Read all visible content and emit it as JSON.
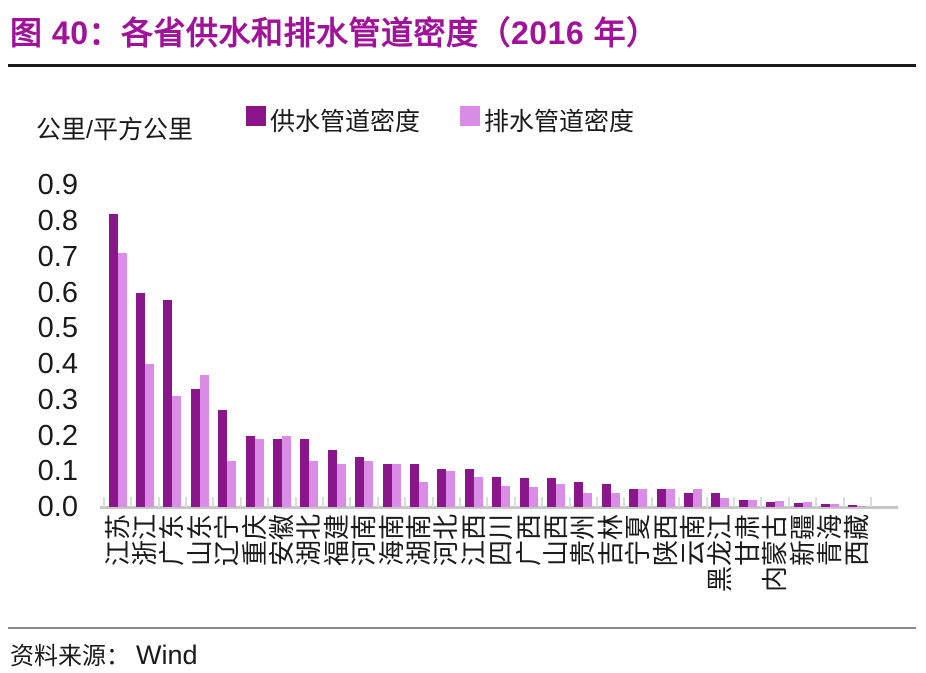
{
  "title": "图 40：各省供水和排水管道密度（2016 年）",
  "unit_label": "公里/平方公里",
  "source": {
    "label": "资料来源：",
    "value": "Wind"
  },
  "colors": {
    "title_purple": "#a0129a",
    "supply_bar": "#8b158b",
    "drain_bar": "#da8de6",
    "axis_line": "#c6c6c6",
    "tick": "#dcdcdc",
    "text": "#1a1a1a"
  },
  "y_axis": {
    "min": 0.0,
    "max": 0.9,
    "step": 0.1,
    "tick_labels": [
      "0.0",
      "0.1",
      "0.2",
      "0.3",
      "0.4",
      "0.5",
      "0.6",
      "0.7",
      "0.8",
      "0.9"
    ]
  },
  "chart_data": {
    "type": "bar",
    "title": "各省供水和排水管道密度（2016 年）",
    "ylabel": "公里/平方公里",
    "ylim": [
      0,
      0.9
    ],
    "grid": false,
    "legend_position": "top-center",
    "categories": [
      "江苏",
      "浙江",
      "广东",
      "山东",
      "辽宁",
      "重庆",
      "安徽",
      "湖北",
      "福建",
      "河南",
      "海南",
      "湖南",
      "河北",
      "江西",
      "四川",
      "广西",
      "山西",
      "贵州",
      "吉林",
      "宁夏",
      "陕西",
      "云南",
      "黑龙江",
      "甘肃",
      "内蒙古",
      "新疆",
      "青海",
      "西藏"
    ],
    "series": [
      {
        "name": "供水管道密度",
        "color": "#8b158b",
        "values": [
          0.82,
          0.6,
          0.58,
          0.33,
          0.27,
          0.2,
          0.19,
          0.19,
          0.16,
          0.14,
          0.12,
          0.12,
          0.105,
          0.105,
          0.085,
          0.08,
          0.08,
          0.07,
          0.065,
          0.05,
          0.05,
          0.04,
          0.04,
          0.02,
          0.015,
          0.01,
          0.008,
          0.005
        ]
      },
      {
        "name": "排水管道密度",
        "color": "#da8de6",
        "values": [
          0.71,
          0.4,
          0.31,
          0.37,
          0.13,
          0.19,
          0.2,
          0.13,
          0.12,
          0.13,
          0.12,
          0.07,
          0.1,
          0.085,
          0.06,
          0.055,
          0.065,
          0.04,
          0.04,
          0.05,
          0.05,
          0.05,
          0.025,
          0.02,
          0.017,
          0.013,
          0.009,
          0.004
        ]
      }
    ]
  }
}
